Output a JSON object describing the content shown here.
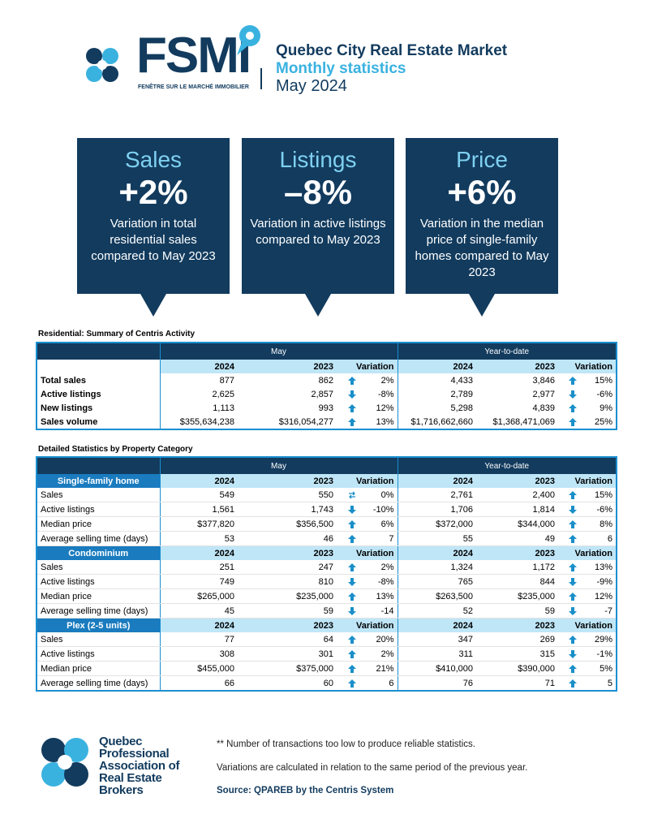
{
  "header": {
    "logo": "FSMI",
    "tagline": "FENÊTRE SUR LE MARCHÉ IMMOBILIER",
    "title": "Quebec City Real Estate Market",
    "subtitle": "Monthly statistics",
    "date": "May 2024"
  },
  "cards": [
    {
      "heading": "Sales",
      "value": "+2%",
      "description": "Variation in total residential sales compared to May 2023"
    },
    {
      "heading": "Listings",
      "value": "–8%",
      "description": "Variation in active listings compared to May 2023"
    },
    {
      "heading": "Price",
      "value": "+6%",
      "description": "Variation in the median price of single-family homes compared to May 2023"
    }
  ],
  "summary": {
    "title": "Residential: Summary of Centris Activity",
    "groups": [
      "May",
      "Year-to-date"
    ],
    "columns": [
      "2024",
      "2023",
      "Variation"
    ],
    "rows": [
      {
        "label": "Total sales",
        "values": [
          "877",
          "862",
          "2%",
          "4,433",
          "3,846",
          "15%"
        ]
      },
      {
        "label": "Active listings",
        "values": [
          "2,625",
          "2,857",
          "-8%",
          "2,789",
          "2,977",
          "-6%"
        ]
      },
      {
        "label": "New listings",
        "values": [
          "1,113",
          "993",
          "12%",
          "5,298",
          "4,839",
          "9%"
        ]
      },
      {
        "label": "Sales volume",
        "values": [
          "$355,634,238",
          "$316,054,277",
          "13%",
          "$1,716,662,660",
          "$1,368,471,069",
          "25%"
        ]
      }
    ]
  },
  "detailed": {
    "title": "Detailed Statistics by Property Category",
    "groups": [
      "May",
      "Year-to-date"
    ],
    "columns": [
      "2024",
      "2023",
      "Variation"
    ],
    "sections": [
      {
        "name": "Single-family home",
        "rows": [
          {
            "label": "Sales",
            "values": [
              "549",
              "550",
              "0%",
              "2,761",
              "2,400",
              "15%"
            ]
          },
          {
            "label": "Active listings",
            "values": [
              "1,561",
              "1,743",
              "-10%",
              "1,706",
              "1,814",
              "-6%"
            ]
          },
          {
            "label": "Median price",
            "values": [
              "$377,820",
              "$356,500",
              "6%",
              "$372,000",
              "$344,000",
              "8%"
            ]
          },
          {
            "label": "Average selling time (days)",
            "values": [
              "53",
              "46",
              "7",
              "55",
              "49",
              "6"
            ]
          }
        ]
      },
      {
        "name": "Condominium",
        "rows": [
          {
            "label": "Sales",
            "values": [
              "251",
              "247",
              "2%",
              "1,324",
              "1,172",
              "13%"
            ]
          },
          {
            "label": "Active listings",
            "values": [
              "749",
              "810",
              "-8%",
              "765",
              "844",
              "-9%"
            ]
          },
          {
            "label": "Median price",
            "values": [
              "$265,000",
              "$235,000",
              "13%",
              "$263,500",
              "$235,000",
              "12%"
            ]
          },
          {
            "label": "Average selling time (days)",
            "values": [
              "45",
              "59",
              "-14",
              "52",
              "59",
              "-7"
            ]
          }
        ]
      },
      {
        "name": "Plex (2-5 units)",
        "rows": [
          {
            "label": "Sales",
            "values": [
              "77",
              "64",
              "20%",
              "347",
              "269",
              "29%"
            ]
          },
          {
            "label": "Active listings",
            "values": [
              "308",
              "301",
              "2%",
              "311",
              "315",
              "-1%"
            ]
          },
          {
            "label": "Median price",
            "values": [
              "$455,000",
              "$375,000",
              "21%",
              "$410,000",
              "$390,000",
              "5%"
            ]
          },
          {
            "label": "Average selling time (days)",
            "values": [
              "66",
              "60",
              "6",
              "76",
              "71",
              "5"
            ]
          }
        ]
      }
    ]
  },
  "footer": {
    "organization": "Quebec Professional Association of Real Estate Brokers",
    "notes": [
      "**  Number of transactions too low to produce reliable statistics.",
      "Variations are calculated in relation to the same period of the previous year."
    ],
    "source": "Source: QPAREB by the Centris System"
  }
}
